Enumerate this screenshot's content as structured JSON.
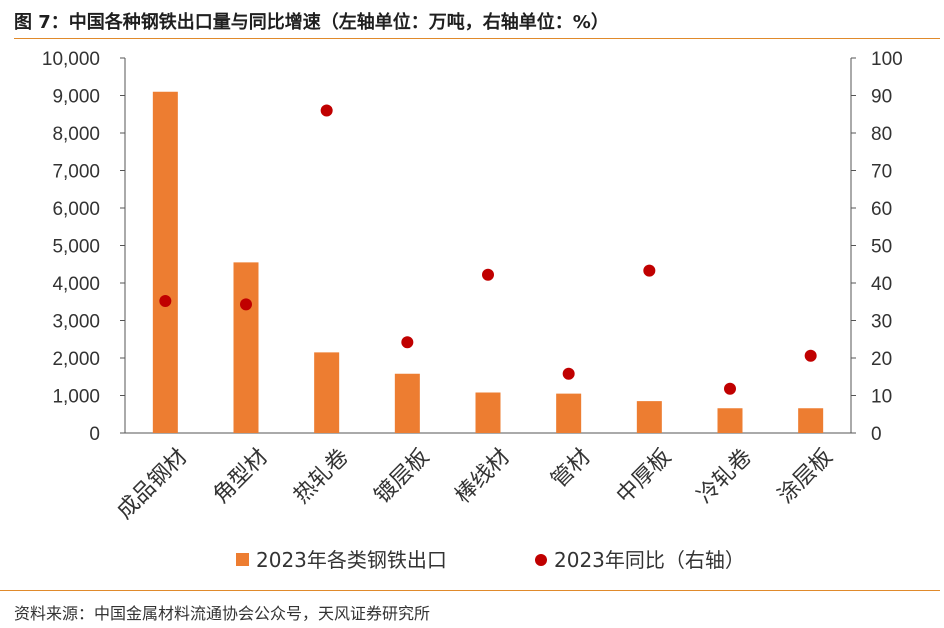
{
  "header": {
    "title": "图 7：中国各种钢铁出口量与同比增速（左轴单位：万吨，右轴单位：%）"
  },
  "footer": {
    "source": "资料来源：中国金属材料流通协会公众号，天风证券研究所"
  },
  "colors": {
    "bar": "#ed7d31",
    "dot": "#c00000",
    "axis": "#555555",
    "rule": "#e08a2b"
  },
  "chart_data": {
    "type": "bar",
    "title": "中国各种钢铁出口量与同比增速",
    "categories": [
      "成品钢材",
      "角型材",
      "热轧卷",
      "镀层板",
      "棒线材",
      "管材",
      "中厚板",
      "冷轧卷",
      "涂层板"
    ],
    "series": [
      {
        "name": "2023年各类钢铁出口",
        "type": "bar",
        "axis": "left",
        "values": [
          9100,
          4550,
          2150,
          1580,
          1080,
          1050,
          850,
          660,
          660
        ]
      },
      {
        "name": "2023年同比（右轴）",
        "type": "scatter",
        "axis": "right",
        "values": [
          35.2,
          34.3,
          86,
          24.2,
          42.2,
          15.8,
          43.3,
          11.8,
          20.6
        ]
      }
    ],
    "y_left": {
      "lim": [
        0,
        10000
      ],
      "ticks": [
        0,
        1000,
        2000,
        3000,
        4000,
        5000,
        6000,
        7000,
        8000,
        9000,
        10000
      ],
      "tick_labels": [
        "0",
        "1,000",
        "2,000",
        "3,000",
        "4,000",
        "5,000",
        "6,000",
        "7,000",
        "8,000",
        "9,000",
        "10,000"
      ]
    },
    "y_right": {
      "lim": [
        0,
        100
      ],
      "ticks": [
        0,
        10,
        20,
        30,
        40,
        50,
        60,
        70,
        80,
        90,
        100
      ],
      "tick_labels": [
        "0",
        "10",
        "20",
        "30",
        "40",
        "50",
        "60",
        "70",
        "80",
        "90",
        "100"
      ]
    },
    "legend": {
      "placement": "bottom",
      "entries": [
        "2023年各类钢铁出口",
        "2023年同比（右轴）"
      ]
    },
    "grid": false
  }
}
